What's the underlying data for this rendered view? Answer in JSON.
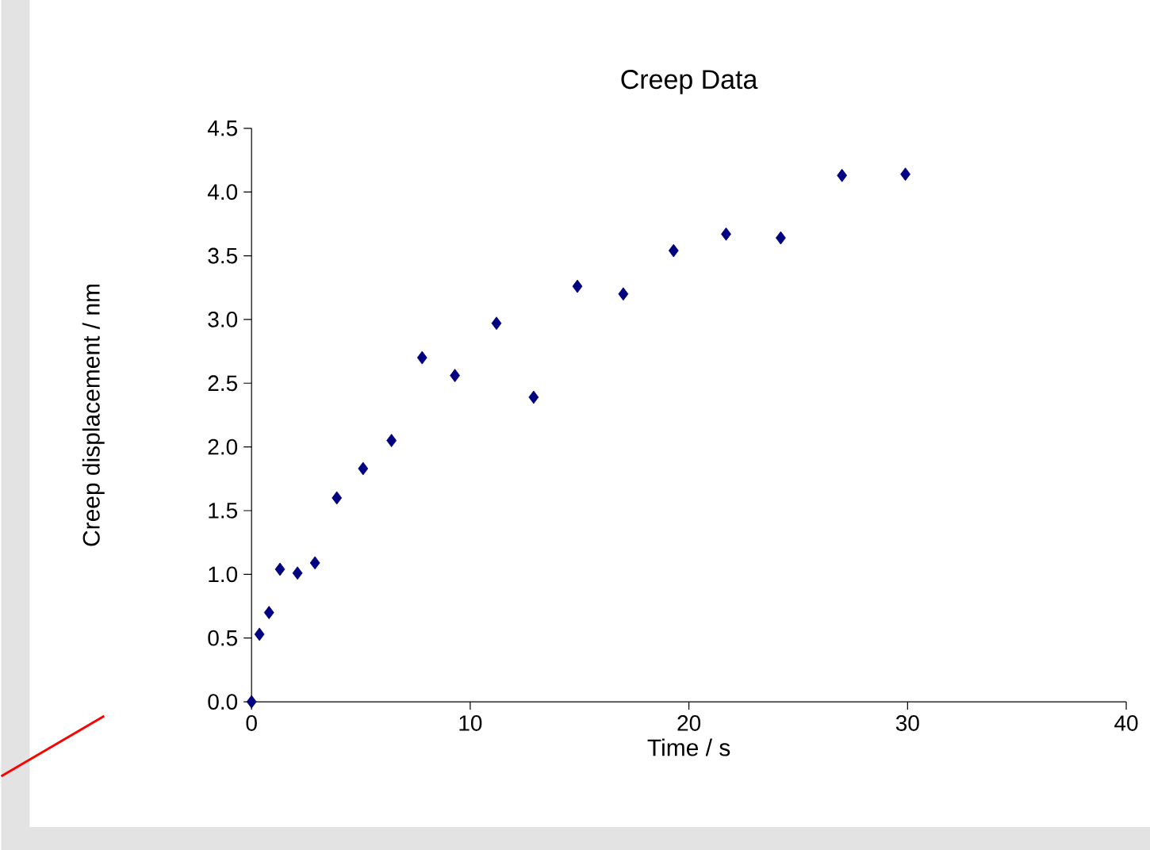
{
  "chart_data": {
    "type": "scatter",
    "title": "Creep Data",
    "xlabel": "Time / s",
    "ylabel": "Creep displacement / nm",
    "x": [
      0,
      0.36,
      0.8,
      1.3,
      2.1,
      2.9,
      3.9,
      5.1,
      6.4,
      7.8,
      9.3,
      11.2,
      12.9,
      14.9,
      17.0,
      19.3,
      21.7,
      24.2,
      27.0,
      29.9
    ],
    "values": [
      0,
      0.53,
      0.7,
      1.04,
      1.01,
      1.09,
      1.6,
      1.83,
      2.05,
      2.7,
      2.56,
      2.97,
      2.39,
      3.26,
      3.2,
      3.54,
      3.67,
      3.64,
      4.13,
      4.14
    ],
    "color": "#000080",
    "marker": "diamond",
    "grid": false,
    "xlim": [
      0,
      40
    ],
    "xticks": [
      0,
      10,
      20,
      30,
      40
    ],
    "ylim": [
      0,
      4.5
    ],
    "yticks": [
      {
        "value": 0,
        "label": "0.0"
      },
      {
        "value": 0.5,
        "label": "0.5"
      },
      {
        "value": 1,
        "label": "1.0"
      },
      {
        "value": 1.5,
        "label": "1.5"
      },
      {
        "value": 2,
        "label": "2.0"
      },
      {
        "value": 2.5,
        "label": "2.5"
      },
      {
        "value": 3,
        "label": "3.0"
      },
      {
        "value": 3.5,
        "label": "3.5"
      },
      {
        "value": 4,
        "label": "4.0"
      },
      {
        "value": 4.5,
        "label": "4.5"
      }
    ]
  }
}
